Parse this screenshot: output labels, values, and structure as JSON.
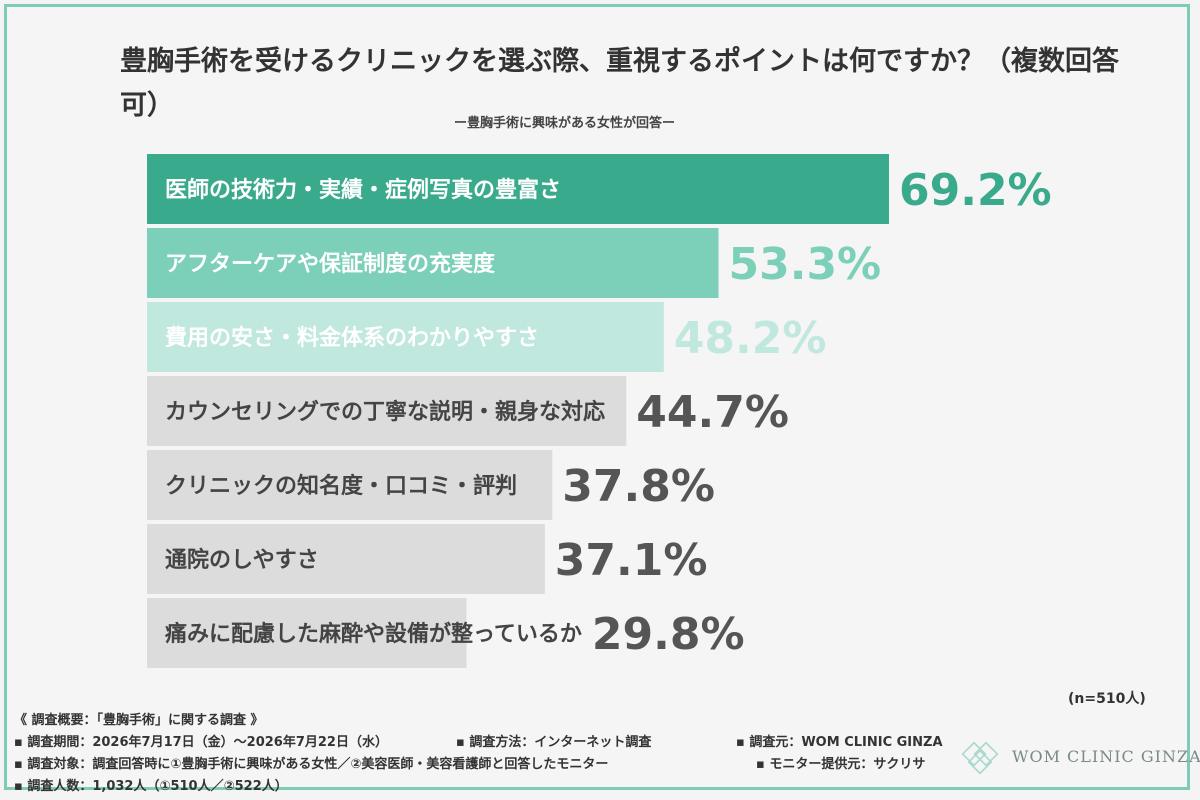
{
  "title": "豊胸手術を受けるクリニックを選ぶ際、重視するポイントは何ですか？（複数回答可）",
  "subtitle": "ー豊胸手術に興味がある女性が回答ー",
  "n_label": "(n=510人)",
  "chart_data": {
    "type": "bar",
    "orientation": "horizontal",
    "title": "豊胸手術を受けるクリニックを選ぶ際、重視するポイントは何ですか？（複数回答可）",
    "categories": [
      "医師の技術力・実績・症例写真の豊富さ",
      "アフターケアや保証制度の充実度",
      "費用の安さ・料金体系のわかりやすさ",
      "カウンセリングでの丁寧な説明・親身な対応",
      "クリニックの知名度・口コミ・評判",
      "通院のしやすさ",
      "痛みに配慮した麻酔や設備が整っているか"
    ],
    "values": [
      69.2,
      53.3,
      48.2,
      44.7,
      37.8,
      37.1,
      29.8
    ],
    "value_labels": [
      "69.2%",
      "53.3%",
      "48.2%",
      "44.7%",
      "37.8%",
      "37.1%",
      "29.8%"
    ],
    "xlim": [
      0,
      69.2
    ],
    "grid": false,
    "colors": [
      "#3aaa8c",
      "#7ccfb9",
      "#c1e8de",
      "#dcdcdc",
      "#dcdcdc",
      "#dcdcdc",
      "#dcdcdc"
    ],
    "value_colors": [
      "#3aaa8c",
      "#7ccfb9",
      "#c1e8de",
      "#555555",
      "#555555",
      "#555555",
      "#555555"
    ],
    "label_colors": [
      "#ffffff",
      "#ffffff",
      "#ffffff",
      "#444444",
      "#444444",
      "#444444",
      "#444444"
    ]
  },
  "footer": {
    "overview": "《 調査概要：「豊胸手術」に関する調査 》",
    "period": "▪ 調査期間：2026年7月17日（金）〜2026年7月22日（水）",
    "method": "▪ 調査方法：インターネット調査",
    "source": "▪ 調査元：WOM CLINIC GINZA",
    "target": "▪ 調査対象：調査回答時に①豊胸手術に興味がある女性／②美容医師・美容看護師と回答したモニター",
    "provider": "▪ モニター提供元：サクリサ",
    "count": "▪ 調査人数：1,032人（①510人／②522人）"
  },
  "logo": {
    "text": "WOM CLINIC GINZA",
    "color": "#a9d9cd"
  }
}
